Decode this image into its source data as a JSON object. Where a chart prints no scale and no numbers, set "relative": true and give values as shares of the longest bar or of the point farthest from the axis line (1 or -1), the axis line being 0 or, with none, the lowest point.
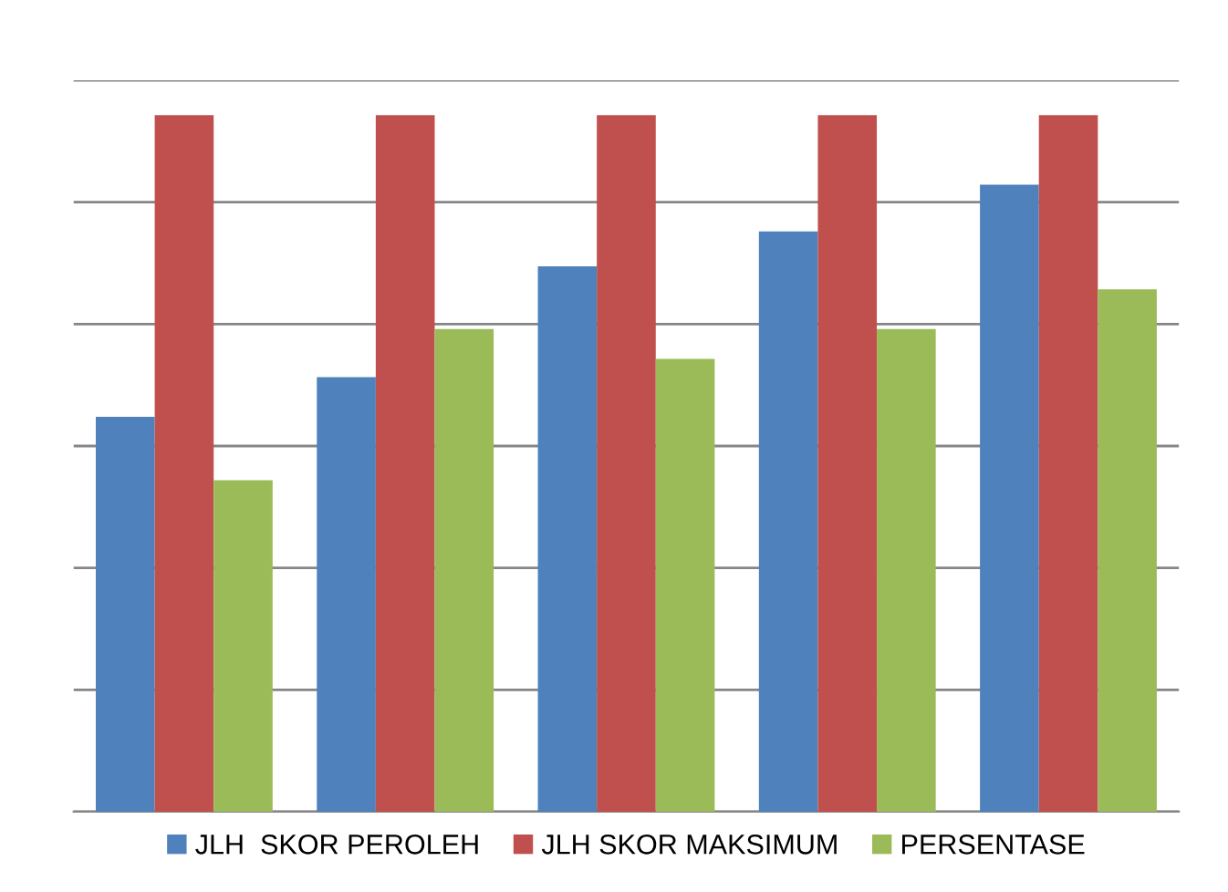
{
  "chart_data": {
    "type": "bar",
    "relative": true,
    "categories": [
      null,
      null,
      null,
      null,
      null
    ],
    "series": [
      {
        "name": "JLH  SKOR PEROLEH",
        "color": "#4f81bd",
        "values": [
          0.567,
          0.624,
          0.783,
          0.833,
          0.9
        ]
      },
      {
        "name": "JLH SKOR MAKSIMUM",
        "color": "#c0504d",
        "values": [
          1,
          1,
          1,
          1,
          1
        ]
      },
      {
        "name": "PERSENTASE",
        "color": "#9bbb59",
        "values": [
          0.476,
          0.693,
          0.65,
          0.693,
          0.75
        ]
      }
    ],
    "grid": "y",
    "legend": "bottom"
  }
}
